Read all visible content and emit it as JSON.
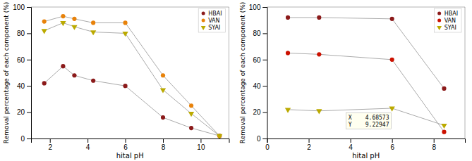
{
  "chart_data": [
    {
      "type": "line",
      "x_label": "hital pH",
      "y_label": "Removal percentage of each component (%)",
      "x": [
        1.7,
        2.7,
        3.3,
        4.3,
        6.0,
        8.0,
        9.5,
        11.0
      ],
      "series": [
        {
          "name": "HBAI",
          "color": "#8B1A1A",
          "marker": "circle",
          "values": [
            42,
            55,
            48,
            44,
            40,
            16,
            8,
            2
          ]
        },
        {
          "name": "VAN",
          "color": "#E8820A",
          "marker": "circle",
          "values": [
            89,
            93,
            91,
            88,
            88,
            48,
            25,
            2
          ]
        },
        {
          "name": "SYAI",
          "color": "#BBAA00",
          "marker": "triangle-down",
          "values": [
            82,
            88,
            85,
            81,
            80,
            37,
            19,
            2
          ]
        }
      ],
      "xlim": [
        1,
        11.5
      ],
      "ylim": [
        0,
        100
      ],
      "xticks": [
        2,
        4,
        6,
        8,
        10
      ],
      "yticks": [
        0,
        20,
        40,
        60,
        80,
        100
      ],
      "legend": "upper right"
    },
    {
      "type": "line",
      "x_label": "hital pH",
      "y_label": "Removal percentage of each component (%)",
      "x": [
        1.0,
        2.5,
        6.0,
        8.5
      ],
      "series": [
        {
          "name": "HBAI",
          "color": "#8B1A1A",
          "marker": "circle",
          "values": [
            92,
            92,
            91,
            38
          ]
        },
        {
          "name": "VAN",
          "color": "#CC1100",
          "marker": "circle",
          "values": [
            65,
            64,
            60,
            5
          ]
        },
        {
          "name": "SYAI",
          "color": "#BBAA00",
          "marker": "triangle-down",
          "values": [
            22,
            21,
            23,
            10
          ]
        }
      ],
      "xlim": [
        0,
        9.5
      ],
      "ylim": [
        0,
        100
      ],
      "xticks": [
        0,
        2,
        4,
        6,
        8
      ],
      "yticks": [
        0,
        20,
        40,
        60,
        80,
        100
      ],
      "legend": "upper right",
      "annotations": [
        "X    4.68573",
        "Y    9.22947"
      ]
    }
  ]
}
